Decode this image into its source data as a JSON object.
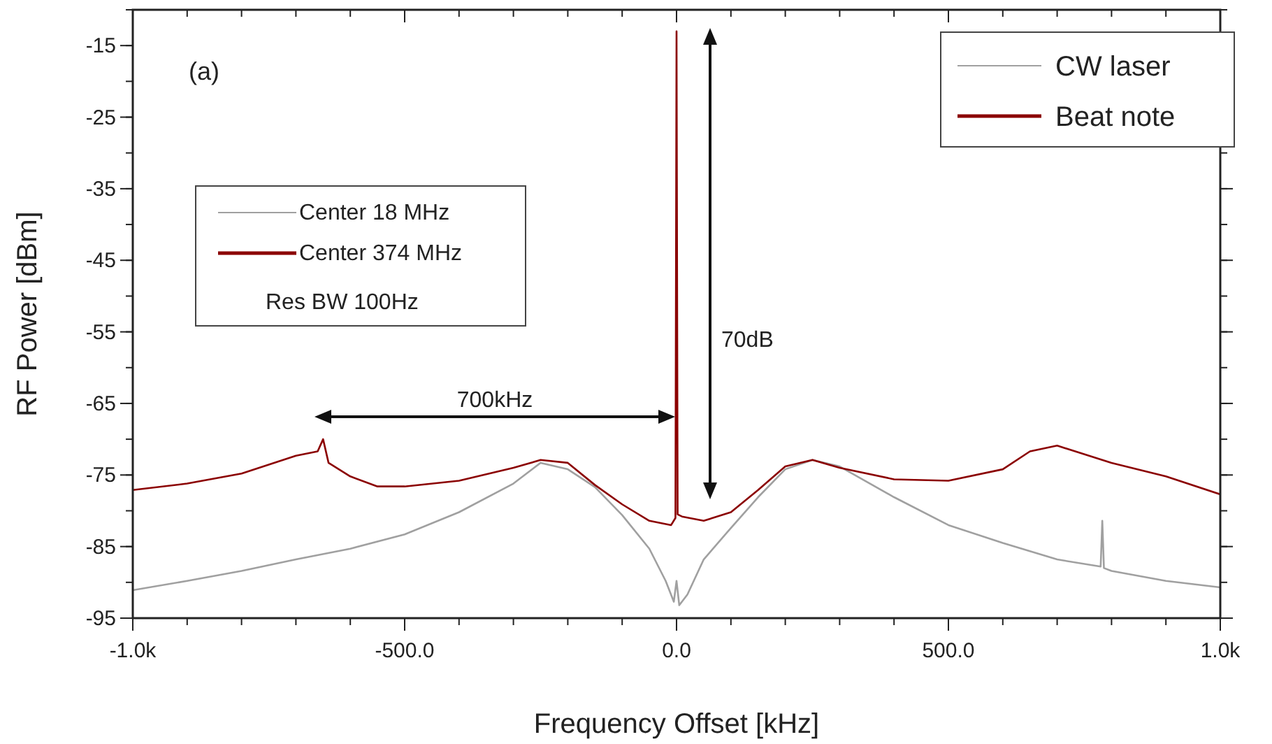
{
  "chart_data": {
    "type": "line",
    "xlabel": "Frequency Offset [kHz]",
    "ylabel": "RF Power [dBm]",
    "xlim": [
      -1000,
      1000
    ],
    "ylim": [
      -95,
      -10
    ],
    "xticks": [
      {
        "value": -1000,
        "label": "-1.0k"
      },
      {
        "value": -500,
        "label": "-500.0"
      },
      {
        "value": 0,
        "label": "0.0"
      },
      {
        "value": 500,
        "label": "500.0"
      },
      {
        "value": 1000,
        "label": "1.0k"
      }
    ],
    "yticks": [
      -95,
      -85,
      -75,
      -65,
      -55,
      -45,
      -35,
      -25,
      -15
    ],
    "legend": "top right",
    "grid": false,
    "series": [
      {
        "name": "CW laser",
        "color": "#a0a0a0",
        "x": [
          -1000,
          -900,
          -800,
          -700,
          -600,
          -500,
          -400,
          -300,
          -250,
          -200,
          -150,
          -100,
          -50,
          -20,
          -5,
          0,
          5,
          20,
          50,
          100,
          150,
          200,
          250,
          300,
          400,
          500,
          600,
          700,
          780,
          783,
          786,
          800,
          900,
          1000
        ],
        "values": [
          -91.1,
          -89.8,
          -88.4,
          -86.8,
          -85.3,
          -83.3,
          -80.2,
          -76.2,
          -73.3,
          -74.2,
          -76.7,
          -80.6,
          -85.3,
          -89.8,
          -92.7,
          -89.8,
          -93.2,
          -91.7,
          -86.8,
          -82.4,
          -78.1,
          -74.2,
          -72.9,
          -73.8,
          -78.1,
          -82,
          -84.5,
          -86.8,
          -87.8,
          -81.4,
          -88,
          -88.4,
          -89.8,
          -90.7
        ]
      },
      {
        "name": "Beat note",
        "color": "#8b0000",
        "x": [
          -1000,
          -900,
          -800,
          -700,
          -660,
          -650,
          -640,
          -600,
          -550,
          -500,
          -400,
          -300,
          -250,
          -200,
          -150,
          -100,
          -50,
          -10,
          -2,
          0,
          2,
          10,
          50,
          100,
          150,
          200,
          250,
          300,
          400,
          500,
          600,
          650,
          700,
          800,
          900,
          1000
        ],
        "values": [
          -77.1,
          -76.2,
          -74.8,
          -72.3,
          -71.7,
          -70,
          -73.3,
          -75.2,
          -76.6,
          -76.6,
          -75.8,
          -74,
          -72.9,
          -73.3,
          -76.4,
          -79.1,
          -81.4,
          -82,
          -81,
          -13,
          -80.5,
          -80.8,
          -81.4,
          -80.2,
          -77.1,
          -73.8,
          -72.9,
          -74,
          -75.6,
          -75.8,
          -74.2,
          -71.7,
          -70.9,
          -73.3,
          -75.2,
          -77.7
        ]
      }
    ],
    "annotations": [
      "(a)",
      "700kHz",
      "70dB",
      "Center 18 MHz",
      "Center 374 MHz",
      "Res BW 100Hz"
    ]
  }
}
